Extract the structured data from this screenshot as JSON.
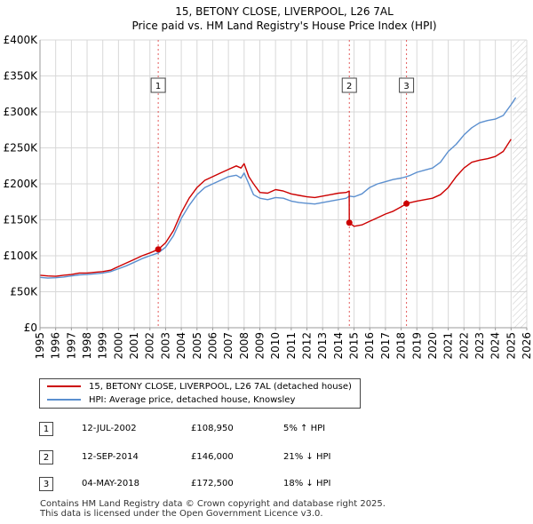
{
  "chart_data": {
    "type": "line",
    "title": "15, BETONY CLOSE, LIVERPOOL, L26 7AL",
    "subtitle": "Price paid vs. HM Land Registry's House Price Index (HPI)",
    "xlabel": "",
    "ylabel": "",
    "xlim": [
      1995,
      2026
    ],
    "ylim": [
      0,
      400000
    ],
    "x_ticks": [
      "1995",
      "1996",
      "1997",
      "1998",
      "1999",
      "2000",
      "2001",
      "2002",
      "2003",
      "2004",
      "2005",
      "2006",
      "2007",
      "2008",
      "2009",
      "2010",
      "2011",
      "2012",
      "2013",
      "2014",
      "2015",
      "2016",
      "2017",
      "2018",
      "2019",
      "2020",
      "2021",
      "2022",
      "2023",
      "2024",
      "2025",
      "2026"
    ],
    "y_ticks": [
      {
        "value": 0,
        "label": "£0"
      },
      {
        "value": 50000,
        "label": "£50K"
      },
      {
        "value": 100000,
        "label": "£100K"
      },
      {
        "value": 150000,
        "label": "£150K"
      },
      {
        "value": 200000,
        "label": "£200K"
      },
      {
        "value": 250000,
        "label": "£250K"
      },
      {
        "value": 300000,
        "label": "£300K"
      },
      {
        "value": 350000,
        "label": "£350K"
      },
      {
        "value": 400000,
        "label": "£400K"
      }
    ],
    "grid": true,
    "forecast_from": 2025.1,
    "series": [
      {
        "name": "15, BETONY CLOSE, LIVERPOOL, L26 7AL (detached house)",
        "color": "#cc0000",
        "x": [
          1995.0,
          1995.5,
          1996.0,
          1996.5,
          1997.0,
          1997.5,
          1998.0,
          1998.5,
          1999.0,
          1999.5,
          2000.0,
          2000.5,
          2001.0,
          2001.5,
          2002.0,
          2002.53,
          2003.0,
          2003.5,
          2004.0,
          2004.5,
          2005.0,
          2005.5,
          2006.0,
          2006.5,
          2007.0,
          2007.5,
          2007.8,
          2008.0,
          2008.3,
          2008.6,
          2009.0,
          2009.5,
          2010.0,
          2010.5,
          2011.0,
          2011.5,
          2012.0,
          2012.5,
          2013.0,
          2013.5,
          2014.0,
          2014.5,
          2014.69,
          2014.7,
          2015.0,
          2015.5,
          2016.0,
          2016.5,
          2017.0,
          2017.5,
          2018.0,
          2018.34,
          2018.6,
          2019.0,
          2019.5,
          2020.0,
          2020.5,
          2021.0,
          2021.5,
          2022.0,
          2022.5,
          2023.0,
          2023.5,
          2024.0,
          2024.5,
          2025.0
        ],
        "values": [
          73000,
          72000,
          71500,
          73000,
          74000,
          76000,
          76000,
          77000,
          78000,
          80000,
          85000,
          90000,
          95000,
          100000,
          104000,
          108950,
          118000,
          135000,
          160000,
          180000,
          195000,
          205000,
          210000,
          215000,
          220000,
          225000,
          222000,
          228000,
          210000,
          200000,
          188000,
          187000,
          192000,
          190000,
          186000,
          184000,
          182000,
          181000,
          183000,
          185000,
          187000,
          188000,
          190000,
          146000,
          141000,
          143000,
          148000,
          153000,
          158000,
          162000,
          168000,
          172500,
          174000,
          176000,
          178000,
          180000,
          185000,
          195000,
          210000,
          222000,
          230000,
          233000,
          235000,
          238000,
          245000,
          262000
        ]
      },
      {
        "name": "HPI: Average price, detached house, Knowsley",
        "color": "#5b8fcf",
        "x": [
          1995.0,
          1995.5,
          1996.0,
          1996.5,
          1997.0,
          1997.5,
          1998.0,
          1998.5,
          1999.0,
          1999.5,
          2000.0,
          2000.5,
          2001.0,
          2001.5,
          2002.0,
          2002.53,
          2003.0,
          2003.5,
          2004.0,
          2004.5,
          2005.0,
          2005.5,
          2006.0,
          2006.5,
          2007.0,
          2007.5,
          2007.8,
          2008.0,
          2008.3,
          2008.6,
          2009.0,
          2009.5,
          2010.0,
          2010.5,
          2011.0,
          2011.5,
          2012.0,
          2012.5,
          2013.0,
          2013.5,
          2014.0,
          2014.5,
          2014.7,
          2015.0,
          2015.5,
          2016.0,
          2016.5,
          2017.0,
          2017.5,
          2018.0,
          2018.34,
          2018.6,
          2019.0,
          2019.5,
          2020.0,
          2020.5,
          2021.0,
          2021.5,
          2022.0,
          2022.5,
          2023.0,
          2023.5,
          2024.0,
          2024.5,
          2025.0,
          2025.3
        ],
        "values": [
          70000,
          69000,
          69500,
          70500,
          72000,
          73500,
          74000,
          75000,
          76000,
          78000,
          82000,
          86000,
          91000,
          96000,
          100000,
          104000,
          112000,
          128000,
          152000,
          170000,
          185000,
          195000,
          200000,
          205000,
          210000,
          212000,
          208000,
          215000,
          200000,
          185000,
          180000,
          178000,
          181000,
          180000,
          176000,
          174000,
          173000,
          172000,
          174000,
          176000,
          178000,
          180000,
          183000,
          182000,
          186000,
          195000,
          200000,
          203000,
          206000,
          208000,
          210000,
          212000,
          216000,
          219000,
          222000,
          230000,
          245000,
          255000,
          268000,
          278000,
          285000,
          288000,
          290000,
          295000,
          310000,
          320000
        ]
      }
    ],
    "sales": [
      {
        "num": "1",
        "x": 2002.53,
        "value": 108950
      },
      {
        "num": "2",
        "x": 2014.7,
        "value": 146000
      },
      {
        "num": "3",
        "x": 2018.34,
        "value": 172500
      }
    ]
  },
  "legend": {
    "property_label": "15, BETONY CLOSE, LIVERPOOL, L26 7AL (detached house)",
    "hpi_label": "HPI: Average price, detached house, Knowsley"
  },
  "sales_table": [
    {
      "num": "1",
      "date": "12-JUL-2002",
      "price": "£108,950",
      "hpi": "5% ↑ HPI"
    },
    {
      "num": "2",
      "date": "12-SEP-2014",
      "price": "£146,000",
      "hpi": "21% ↓ HPI"
    },
    {
      "num": "3",
      "date": "04-MAY-2018",
      "price": "£172,500",
      "hpi": "18% ↓ HPI"
    }
  ],
  "footer": {
    "line1": "Contains HM Land Registry data © Crown copyright and database right 2025.",
    "line2": "This data is licensed under the Open Government Licence v3.0."
  }
}
